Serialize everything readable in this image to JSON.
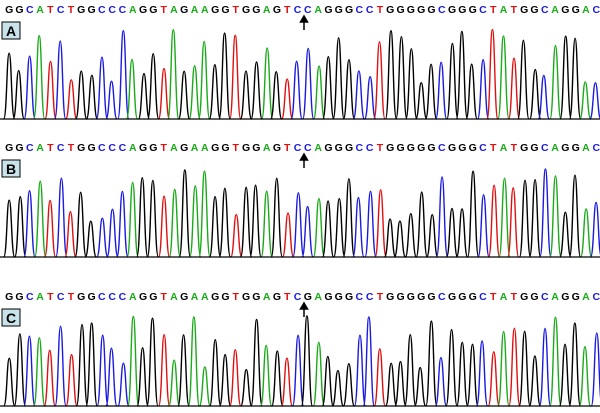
{
  "panels": [
    {
      "label": "A",
      "sequence": "GGCATCTGGCCCAGGTAGAAGGTGGAGTCCAGGGCCTGGGGGCGGGCTATGGCAGGAC"
    },
    {
      "label": "B",
      "sequence": "GGCATCTGGCCCAGGTAGAAGGTGGAGTCCAGGGCCTGGGGGCGGGCTATGGCAGGAC"
    },
    {
      "label": "C",
      "sequence": "GGCATCTGGCCCAGGTAGAAGGTGGAGTCGAGGGCCTGGGGGCGGGCTATGGCAGGAC"
    }
  ]
}
